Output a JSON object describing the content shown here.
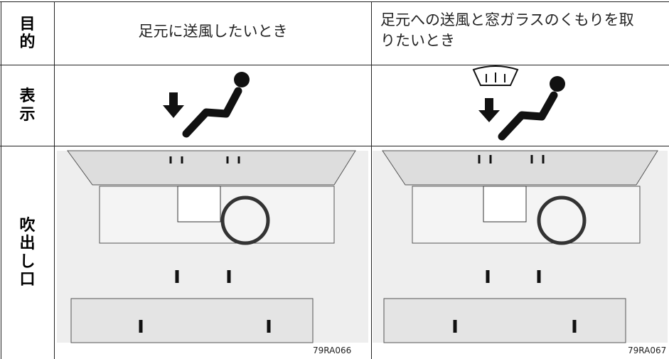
{
  "table": {
    "rows": [
      {
        "label": "目的",
        "cells": [
          "足元に送風したいとき",
          "足元への送風と窓ガラスのくもりを取りたいとき"
        ]
      },
      {
        "label": "表示"
      },
      {
        "label": "吹出し口",
        "cells": [
          "79RA066",
          "79RA067"
        ]
      }
    ]
  }
}
